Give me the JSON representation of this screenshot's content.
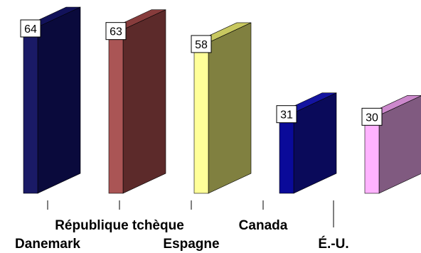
{
  "chart_data": {
    "type": "bar",
    "style": "3d-column",
    "categories": [
      "Danemark",
      "République tchèque",
      "Espagne",
      "Canada",
      "É.-U."
    ],
    "values": [
      64,
      63,
      58,
      31,
      30
    ],
    "data_labels": [
      "64",
      "63",
      "58",
      "31",
      "30"
    ],
    "title": "",
    "xlabel": "",
    "ylabel": "",
    "grid": false,
    "legend": "none",
    "ylim": [
      0,
      64
    ],
    "bar_colors": [
      {
        "front": "#1a1a66",
        "side": "#0a0a3c",
        "top": "#12125a"
      },
      {
        "front": "#aa5555",
        "side": "#5c2a2a",
        "top": "#873c3c"
      },
      {
        "front": "#ffff99",
        "side": "#808040",
        "top": "#c8c860"
      },
      {
        "front": "#0a0a99",
        "side": "#0a0a5a",
        "top": "#1414a0"
      },
      {
        "front": "#ffb3ff",
        "side": "#805a80",
        "top": "#cc88cc"
      }
    ]
  }
}
